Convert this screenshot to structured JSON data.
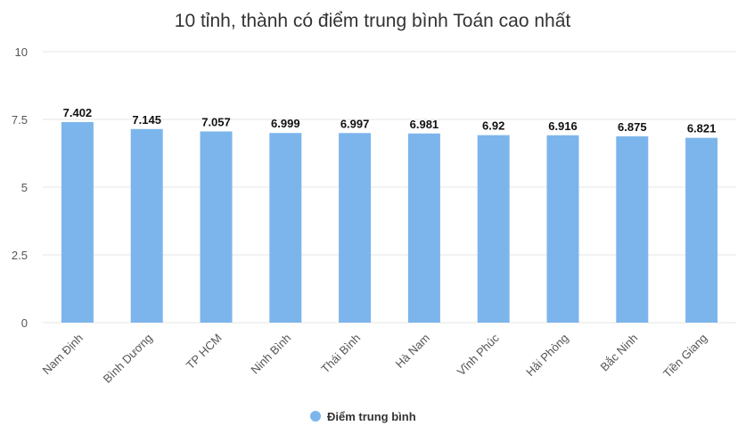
{
  "chart_data": {
    "type": "bar",
    "title": "10 tỉnh, thành có điểm trung bình Toán cao nhất",
    "xlabel": "",
    "ylabel": "",
    "categories": [
      "Nam Định",
      "Bình Dương",
      "TP HCM",
      "Ninh Bình",
      "Thái Bình",
      "Hà Nam",
      "Vĩnh Phúc",
      "Hải Phòng",
      "Bắc Ninh",
      "Tiền Giang"
    ],
    "series": [
      {
        "name": "Điểm trung bình",
        "values": [
          7.402,
          7.145,
          7.057,
          6.999,
          6.997,
          6.981,
          6.92,
          6.916,
          6.875,
          6.821
        ],
        "value_labels": [
          "7.402",
          "7.145",
          "7.057",
          "6.999",
          "6.997",
          "6.981",
          "6.92",
          "6.916",
          "6.875",
          "6.821"
        ],
        "color": "#7cb5ec"
      }
    ],
    "ylim": [
      0,
      10
    ],
    "yticks": [
      0,
      2.5,
      5,
      7.5,
      10
    ],
    "ytick_labels": [
      "0",
      "2.5",
      "5",
      "7.5",
      "10"
    ],
    "grid": true,
    "legend_position": "bottom-center",
    "x_tick_rotation": "-45"
  }
}
